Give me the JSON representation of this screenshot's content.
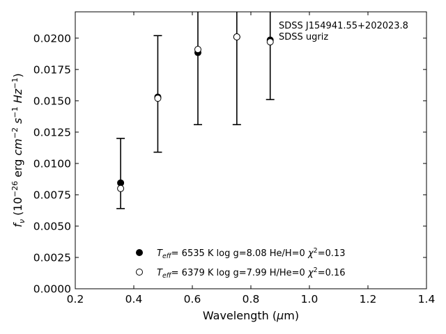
{
  "chart_data": {
    "type": "scatter",
    "title": "",
    "xlabel": "Wavelength (μm)",
    "ylabel": "fν (10⁻²⁶ erg cm⁻² s⁻¹ Hz⁻¹)",
    "xlim": [
      0.2,
      1.4
    ],
    "ylim": [
      0.0,
      0.0221
    ],
    "xticks": [
      "0.2",
      "0.4",
      "0.6",
      "0.8",
      "1.0",
      "1.2",
      "1.4"
    ],
    "yticks": [
      "0.0000",
      "0.0025",
      "0.0050",
      "0.0075",
      "0.0100",
      "0.0125",
      "0.0150",
      "0.0175",
      "0.0200"
    ],
    "grid": false,
    "legend_position": "lower-center",
    "annotations": [
      "SDSS J154941.55+202023.8",
      "SDSS ugriz"
    ],
    "observed": {
      "x": [
        0.355,
        0.482,
        0.619,
        0.752,
        0.866
      ],
      "y": [
        0.008,
        0.0152,
        0.0191,
        0.0201,
        0.0197
      ],
      "yerr_low": [
        0.0016,
        0.0043,
        0.006,
        0.007,
        0.0046
      ],
      "yerr_high": [
        0.004,
        0.005,
        0.006,
        0.007,
        0.006
      ]
    },
    "series": [
      {
        "name": "Teff=  6535 K  log g=8.08  He/H=0  χ²=0.13",
        "marker": "filled-circle",
        "color": "#000000",
        "x": [
          0.355,
          0.482,
          0.619,
          0.752,
          0.866
        ],
        "y": [
          0.00845,
          0.0153,
          0.01885,
          0.0201,
          0.01985
        ]
      },
      {
        "name": "Teff=  6379 K  log g=7.99  H/He=0  χ²=0.16",
        "marker": "open-circle",
        "color": "#000000",
        "x": [
          0.355,
          0.482,
          0.619,
          0.752,
          0.866
        ],
        "y": [
          0.008,
          0.0152,
          0.0191,
          0.0201,
          0.0197
        ]
      }
    ]
  }
}
